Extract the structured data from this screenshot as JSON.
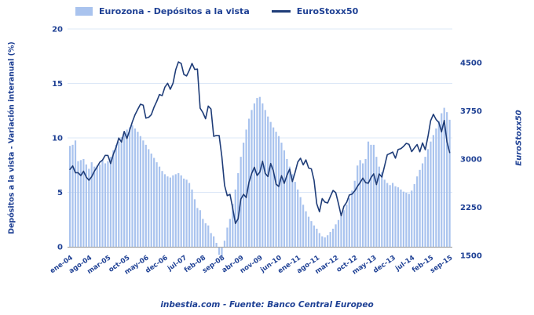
{
  "legend": {
    "bars_label": "Eurozona - Depósitos a la vista",
    "line_label": "EuroStoxx50"
  },
  "axes": {
    "left_title": "Depósitos a la vista - Variación interanual (%)",
    "right_title": "EuroStoxx50"
  },
  "footer": {
    "text": "inbestia.com - Fuente: Banco Central Europeo"
  },
  "colors": {
    "bar": "#a9c3ee",
    "line": "#1e3c78",
    "text": "#1e4094",
    "grid": "#dde8f7",
    "baseline": "#a9a9a9"
  },
  "chart_data": {
    "type": "combo-bar-line",
    "x_unit": "month",
    "x_start": "ene-04",
    "x_end": "sep-15",
    "x_tick_every": 7,
    "x_tick_labels": [
      "ene-04",
      "ago-04",
      "mar-05",
      "oct-05",
      "may-06",
      "dec-06",
      "jul-07",
      "feb-08",
      "sep-08",
      "abr-09",
      "nov-09",
      "jun-10",
      "ene-11",
      "ago-11",
      "mar-12",
      "oct-12",
      "may-13",
      "dec-13",
      "jul-14",
      "feb-15",
      "sep-15"
    ],
    "left_axis": {
      "title": "Depósitos a la vista - Variación interanual (%)",
      "ticks": [
        0,
        5,
        10,
        15,
        20
      ],
      "range": [
        0,
        20
      ]
    },
    "right_axis": {
      "title": "EuroStoxx50",
      "ticks": [
        1500,
        2250,
        3000,
        3750,
        4500
      ],
      "range": [
        1500,
        4500
      ]
    },
    "grid": "horizontal",
    "legend_position": "top",
    "series": [
      {
        "name": "Eurozona - Depósitos a la vista",
        "type": "bar",
        "axis": "left",
        "values": [
          9.3,
          9.4,
          9.8,
          7.9,
          8.0,
          8.1,
          7.6,
          7.2,
          7.8,
          7.4,
          7.5,
          7.6,
          8.0,
          7.7,
          7.9,
          8.3,
          8.9,
          9.4,
          9.7,
          10.1,
          10.4,
          10.8,
          11.0,
          11.2,
          10.9,
          10.6,
          10.2,
          9.8,
          9.4,
          9.0,
          8.6,
          8.2,
          7.8,
          7.4,
          7.0,
          6.7,
          6.5,
          6.4,
          6.6,
          6.7,
          6.8,
          6.6,
          6.3,
          6.2,
          5.9,
          5.3,
          4.4,
          3.6,
          3.4,
          2.6,
          2.2,
          2.0,
          1.3,
          1.0,
          0.4,
          -0.7,
          -0.9,
          0.6,
          1.8,
          2.6,
          4.0,
          5.3,
          6.8,
          8.3,
          9.6,
          10.8,
          11.8,
          12.6,
          13.2,
          13.7,
          13.8,
          13.2,
          12.6,
          12.0,
          11.5,
          11.0,
          10.6,
          10.2,
          9.6,
          8.9,
          8.1,
          7.4,
          6.7,
          6.0,
          5.3,
          4.6,
          3.9,
          3.3,
          2.8,
          2.4,
          2.0,
          1.7,
          1.3,
          1.0,
          0.9,
          1.1,
          1.4,
          1.7,
          2.1,
          2.5,
          2.9,
          3.4,
          3.9,
          4.5,
          5.2,
          6.1,
          7.5,
          8.0,
          7.7,
          8.1,
          9.7,
          9.4,
          9.4,
          8.3,
          7.4,
          6.9,
          6.2,
          5.9,
          5.7,
          5.9,
          5.6,
          5.5,
          5.3,
          5.1,
          5.0,
          4.9,
          5.2,
          5.8,
          6.5,
          7.1,
          7.7,
          8.3,
          9.0,
          9.7,
          10.3,
          10.9,
          11.6,
          12.3,
          12.8,
          12.4,
          11.7
        ]
      },
      {
        "name": "EuroStoxx50",
        "type": "line",
        "axis": "right",
        "values": [
          2839,
          2894,
          2787,
          2787,
          2743,
          2811,
          2720,
          2671,
          2726,
          2811,
          2877,
          2951,
          2985,
          3058,
          3056,
          2930,
          3077,
          3182,
          3327,
          3264,
          3429,
          3320,
          3447,
          3579,
          3691,
          3774,
          3854,
          3839,
          3637,
          3649,
          3692,
          3808,
          3899,
          4005,
          3987,
          4120,
          4179,
          4087,
          4181,
          4392,
          4512,
          4489,
          4316,
          4294,
          4382,
          4489,
          4395,
          4400,
          3792,
          3724,
          3628,
          3825,
          3778,
          3353,
          3367,
          3366,
          3038,
          2591,
          2430,
          2451,
          2236,
          1997,
          2071,
          2376,
          2451,
          2401,
          2638,
          2775,
          2872,
          2744,
          2797,
          2966,
          2777,
          2728,
          2931,
          2816,
          2610,
          2573,
          2742,
          2622,
          2747,
          2844,
          2650,
          2793,
          2954,
          3013,
          2910,
          2987,
          2861,
          2848,
          2670,
          2303,
          2180,
          2385,
          2330,
          2317,
          2417,
          2512,
          2477,
          2306,
          2118,
          2264,
          2325,
          2440,
          2454,
          2504,
          2575,
          2636,
          2703,
          2633,
          2624,
          2712,
          2770,
          2603,
          2768,
          2721,
          2893,
          3068,
          3087,
          3109,
          3014,
          3149,
          3162,
          3198,
          3245,
          3228,
          3116,
          3173,
          3226,
          3113,
          3251,
          3146,
          3351,
          3599,
          3697,
          3615,
          3570,
          3424,
          3601,
          3269,
          3101
        ]
      }
    ]
  }
}
